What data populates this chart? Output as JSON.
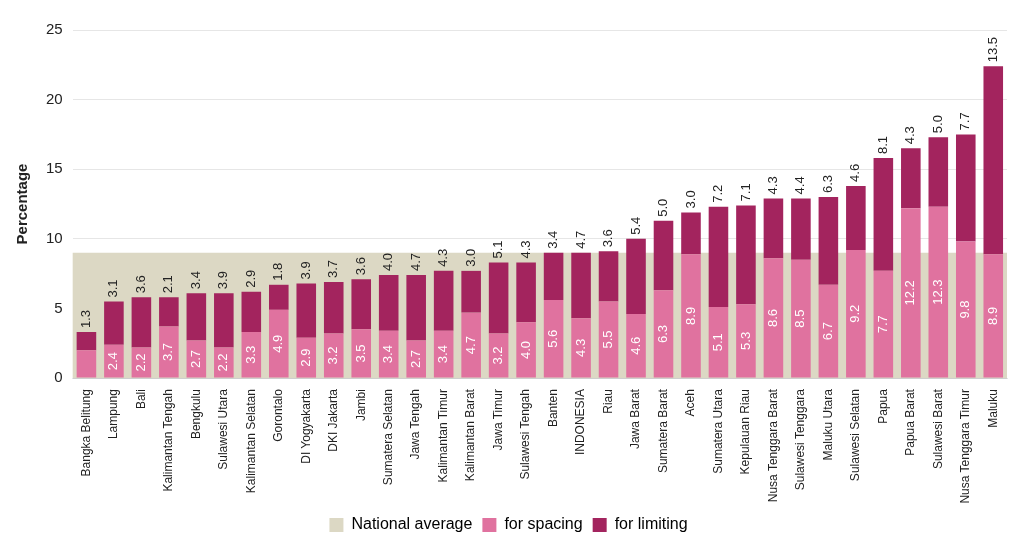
{
  "chart_data": {
    "type": "bar",
    "stacked": true,
    "ylabel": "Percentage",
    "categories": [
      "Bangka Belitung",
      "Lampung",
      "Bali",
      "Kalimantan Tengah",
      "Bengkulu",
      "Sulawesi Utara",
      "Kalimantan Selatan",
      "Gorontalo",
      "DI Yogyakarta",
      "DKI Jakarta",
      "Jambi",
      "Sumatera Selatan",
      "Jawa Tengah",
      "Kalimantan Timur",
      "Kalimantan Barat",
      "Jawa Timur",
      "Sulawesi Tengah",
      "Banten",
      "INDONESIA",
      "Riau",
      "Jawa Barat",
      "Sumatera Barat",
      "Aceh",
      "Sumatera Utara",
      "Kepulauan Riau",
      "Nusa Tenggara Barat",
      "Sulawesi Tenggara",
      "Maluku Utara",
      "Sulawesi Selatan",
      "Papua",
      "Papua Barat",
      "Sulawesi Barat",
      "Nusa Tenggara Timur",
      "Maluku"
    ],
    "series": [
      {
        "name": "for spacing",
        "color": "#e0729f",
        "values": [
          2.0,
          2.4,
          2.2,
          3.7,
          2.7,
          2.2,
          3.3,
          4.9,
          2.9,
          3.2,
          3.5,
          3.4,
          2.7,
          3.4,
          4.7,
          3.2,
          4.0,
          5.6,
          4.3,
          5.5,
          4.6,
          6.3,
          8.9,
          5.1,
          5.3,
          8.6,
          8.5,
          6.7,
          9.2,
          7.7,
          12.2,
          12.3,
          9.8,
          8.9
        ],
        "value_labels": [
          null,
          "2.4",
          "2.2",
          "3.7",
          "2.7",
          "2.2",
          "3.3",
          "4.9",
          "2.9",
          "3.2",
          "3.5",
          "3.4",
          "2.7",
          "3.4",
          "4.7",
          "3.2",
          "4.0",
          "5.6",
          "4.3",
          "5.5",
          "4.6",
          "6.3",
          "8.9",
          "5.1",
          "5.3",
          "8.6",
          "8.5",
          "6.7",
          "9.2",
          "7.7",
          "12.2",
          "12.3",
          "9.8",
          "8.9"
        ]
      },
      {
        "name": "for limiting",
        "color": "#a3245e",
        "values": [
          1.3,
          3.1,
          3.6,
          2.1,
          3.4,
          3.9,
          2.9,
          1.8,
          3.9,
          3.7,
          3.6,
          4.0,
          4.7,
          4.3,
          3.0,
          5.1,
          4.3,
          3.4,
          4.7,
          3.6,
          5.4,
          5.0,
          3.0,
          7.2,
          7.1,
          4.3,
          4.4,
          6.3,
          4.6,
          8.1,
          4.3,
          5.0,
          7.7,
          13.5
        ],
        "value_labels": [
          "1.3",
          "3.1",
          "3.6",
          "2.1",
          "3.4",
          "3.9",
          "2.9",
          "1.8",
          "3.9",
          "3.7",
          "3.6",
          "4.0",
          "4.7",
          "4.3",
          "3.0",
          "5.1",
          "4.3",
          "3.4",
          "4.7",
          "3.6",
          "5.4",
          "5.0",
          "3.0",
          "7.2",
          "7.1",
          "4.3",
          "4.4",
          "6.3",
          "4.6",
          "8.1",
          "4.3",
          "5.0",
          "7.7",
          "13.5"
        ]
      }
    ],
    "bands": [
      {
        "axis": "y",
        "from": 0,
        "to": 9.0,
        "label": "National average",
        "color": "#dcd8c4"
      }
    ],
    "ylim": [
      0,
      25
    ],
    "yticks": [
      0,
      5,
      10,
      15,
      20,
      25
    ],
    "grid": "y",
    "legend": "bottom"
  }
}
